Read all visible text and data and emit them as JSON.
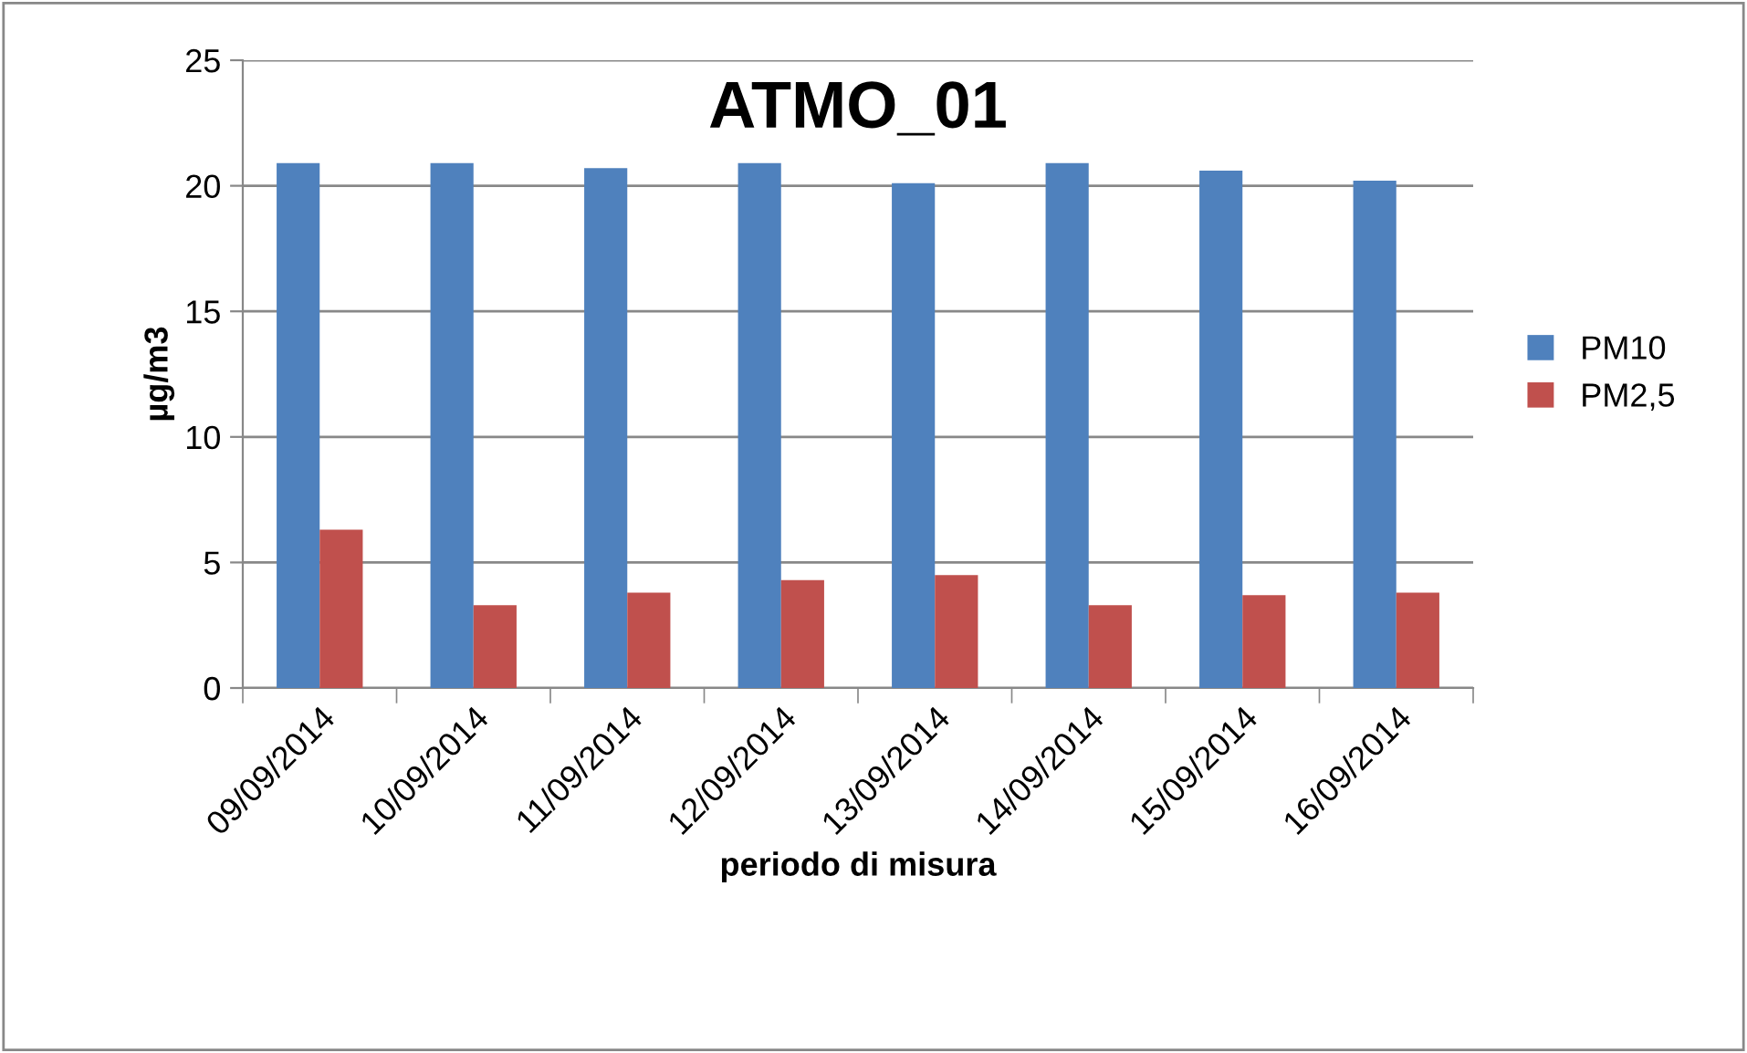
{
  "chart_data": {
    "type": "bar",
    "title": "ATMO_01",
    "xlabel": "periodo di misura",
    "ylabel": "µg/m3",
    "categories": [
      "09/09/2014",
      "10/09/2014",
      "11/09/2014",
      "12/09/2014",
      "13/09/2014",
      "14/09/2014",
      "15/09/2014",
      "16/09/2014"
    ],
    "series": [
      {
        "name": "PM10",
        "color": "#4f81bd",
        "values": [
          20.9,
          20.9,
          20.7,
          20.9,
          20.1,
          20.9,
          20.6,
          20.2
        ]
      },
      {
        "name": "PM2,5",
        "color": "#c0504d",
        "values": [
          6.3,
          3.3,
          3.8,
          4.3,
          4.5,
          3.3,
          3.7,
          3.8
        ]
      }
    ],
    "ylim": [
      0,
      25
    ],
    "yticks": [
      0,
      5,
      10,
      15,
      20,
      25
    ],
    "grid": "y",
    "legend": "right"
  }
}
